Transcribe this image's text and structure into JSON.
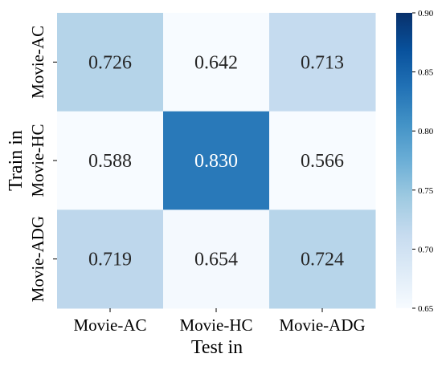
{
  "chart_data": {
    "type": "heatmap",
    "title": "",
    "xlabel": "Test in",
    "ylabel": "Train in",
    "x_categories": [
      "Movie-AC",
      "Movie-HC",
      "Movie-ADG"
    ],
    "y_categories": [
      "Movie-AC",
      "Movie-HC",
      "Movie-ADG"
    ],
    "values": [
      [
        0.726,
        0.642,
        0.713
      ],
      [
        0.588,
        0.83,
        0.566
      ],
      [
        0.719,
        0.654,
        0.724
      ]
    ],
    "cell_labels": [
      [
        "0.726",
        "0.642",
        "0.713"
      ],
      [
        "0.588",
        "0.830",
        "0.566"
      ],
      [
        "0.719",
        "0.654",
        "0.724"
      ]
    ],
    "colormap": "Blues",
    "color_range": [
      0.65,
      0.9
    ],
    "colorbar_ticks": [
      0.65,
      0.7,
      0.75,
      0.8,
      0.85,
      0.9
    ],
    "colorbar_tick_labels": [
      "0.65",
      "0.70",
      "0.75",
      "0.80",
      "0.85",
      "0.90"
    ],
    "colorbar_placement": "right",
    "grid": false
  }
}
